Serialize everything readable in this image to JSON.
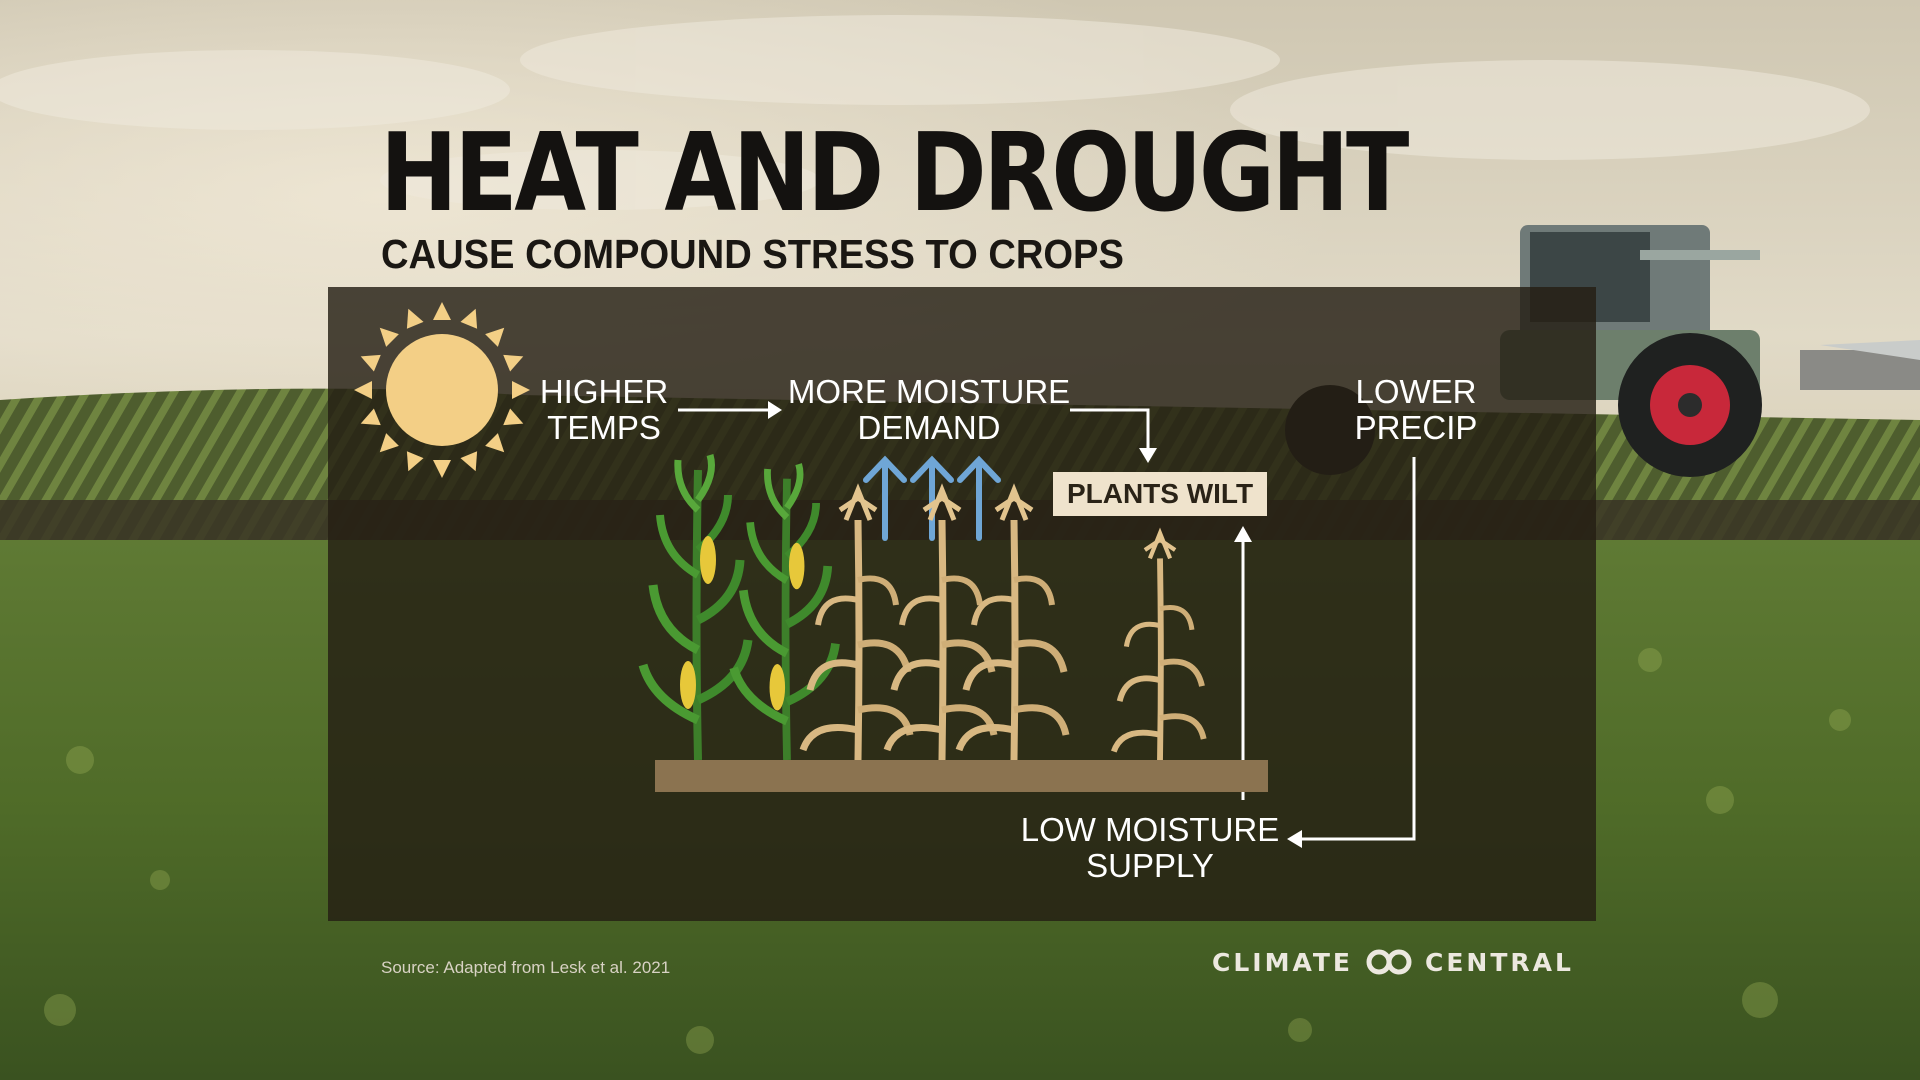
{
  "header": {
    "title": "HEAT AND DROUGHT",
    "subtitle": "CAUSE COMPOUND STRESS TO CROPS"
  },
  "diagram": {
    "higher_temps": [
      "HIGHER",
      "TEMPS"
    ],
    "more_moisture_demand": [
      "MORE MOISTURE",
      "DEMAND"
    ],
    "plants_wilt": "PLANTS WILT",
    "lower_precip": [
      "LOWER",
      "PRECIP"
    ],
    "low_moisture_supply": [
      "LOW MOISTURE",
      "SUPPLY"
    ]
  },
  "footer": {
    "source": "Source: Adapted from Lesk et al. 2021",
    "brand_left": "CLIMATE",
    "brand_right": "CENTRAL"
  },
  "colors": {
    "sun": "#f3cf86",
    "evaporation_arrows": "#6fa6d6",
    "healthy_corn": "#3f8a2c",
    "wilted_corn": "#d8b882",
    "soil": "#8b7350",
    "panel": "#241e14"
  },
  "icons": [
    "sun-icon",
    "corn-plant-icon",
    "arrow-icon",
    "climate-central-logo-icon"
  ]
}
